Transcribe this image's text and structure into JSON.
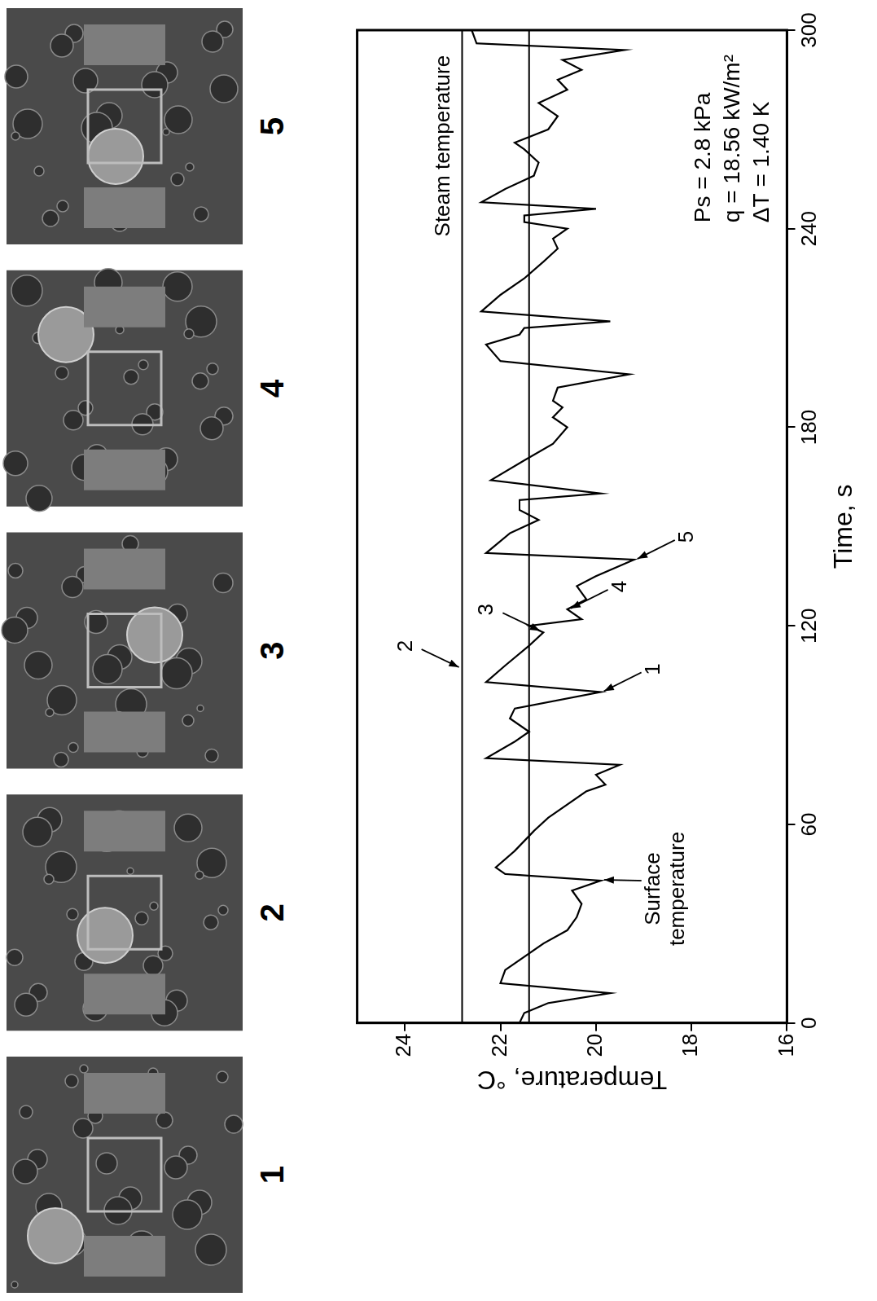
{
  "photos": {
    "labels": [
      "1",
      "2",
      "3",
      "4",
      "5"
    ]
  },
  "chart_data": {
    "type": "line",
    "x_label": "Time, s",
    "y_label": "Temperature, °C",
    "xlim": [
      0,
      300
    ],
    "xticks": [
      0,
      60,
      120,
      180,
      240,
      300
    ],
    "ylim": [
      16,
      25
    ],
    "yticks": [
      16,
      18,
      20,
      22,
      24
    ],
    "grid": false,
    "series": [
      {
        "color": "#000000",
        "x": [
          0,
          3,
          6,
          9,
          12,
          16,
          20,
          24,
          28,
          32,
          36,
          40,
          43,
          45,
          47,
          52,
          58,
          62,
          66,
          70,
          72,
          75,
          78,
          80,
          85,
          88,
          92,
          95,
          100,
          103,
          108,
          114,
          118,
          120,
          122,
          125,
          128,
          132,
          135,
          140,
          142,
          148,
          152,
          155,
          158,
          160,
          164,
          170,
          175,
          180,
          183,
          186,
          188,
          192,
          196,
          200,
          205,
          208,
          210,
          212,
          215,
          220,
          225,
          230,
          234,
          237,
          240,
          242,
          244,
          246,
          248,
          252,
          256,
          260,
          264,
          266,
          270,
          274,
          278,
          282,
          285,
          288,
          291,
          294,
          296,
          300
        ],
        "values": [
          21.6,
          21.5,
          21.0,
          19.7,
          22.0,
          21.9,
          21.5,
          21.1,
          20.6,
          20.4,
          20.3,
          20.5,
          19.9,
          21.9,
          22.1,
          21.7,
          21.3,
          21.0,
          20.6,
          20.2,
          19.8,
          20.0,
          19.5,
          22.3,
          21.7,
          21.4,
          21.8,
          21.7,
          19.9,
          22.3,
          21.9,
          21.4,
          21.1,
          21.4,
          20.3,
          20.6,
          20.2,
          20.4,
          20.0,
          19.2,
          22.3,
          21.8,
          21.2,
          21.6,
          21.6,
          19.9,
          22.2,
          21.5,
          20.9,
          20.6,
          20.9,
          20.7,
          20.9,
          20.8,
          19.3,
          22.0,
          22.3,
          21.6,
          21.5,
          19.7,
          22.4,
          22.0,
          21.5,
          21.1,
          20.8,
          20.9,
          20.6,
          21.5,
          21.5,
          20.0,
          22.4,
          21.9,
          21.3,
          21.2,
          21.5,
          21.7,
          21.0,
          20.8,
          21.2,
          20.6,
          20.8,
          20.3,
          20.7,
          19.4,
          22.5,
          22.6
        ]
      },
      {
        "color": "#000000",
        "x": [
          0,
          300
        ],
        "values": [
          22.8,
          22.8
        ]
      },
      {
        "color": "#000000",
        "x": [
          0,
          300
        ],
        "values": [
          21.4,
          21.4
        ]
      }
    ],
    "annotations": [
      {
        "text": "Steam temperature",
        "x": 265,
        "y": 22.8,
        "arrow": false
      },
      {
        "text": "Surface temperature",
        "x": 43,
        "y": 19.9,
        "arrow": true
      },
      {
        "text": "1",
        "x": 100,
        "y": 19.9,
        "arrow": true
      },
      {
        "text": "2",
        "x": 107,
        "y": 22.8,
        "arrow": true
      },
      {
        "text": "3",
        "x": 118,
        "y": 21.1,
        "arrow": true
      },
      {
        "text": "4",
        "x": 125,
        "y": 20.6,
        "arrow": true
      },
      {
        "text": "5",
        "x": 140,
        "y": 19.2,
        "arrow": true
      }
    ],
    "parameters": [
      "Ps = 2.8 kPa",
      "q = 18.56 kW/m²",
      "ΔT = 1.40 K"
    ]
  }
}
